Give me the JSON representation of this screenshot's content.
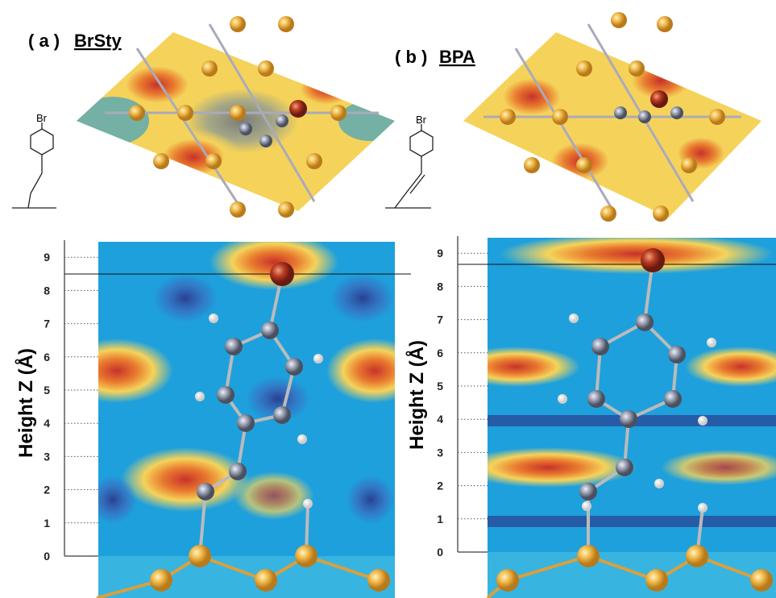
{
  "panels": [
    {
      "tag": "( a )",
      "name": "BrSty",
      "structure_label": "Br",
      "axis_label": "Height Z (Å)",
      "ticks": [
        0,
        1,
        2,
        3,
        4,
        5,
        6,
        7,
        8,
        9
      ]
    },
    {
      "tag": "( b )",
      "name": "BPA",
      "structure_label": "Br",
      "axis_label": "Height Z (Å)",
      "ticks": [
        0,
        1,
        2,
        3,
        4,
        5,
        6,
        7,
        8,
        9
      ]
    }
  ]
}
